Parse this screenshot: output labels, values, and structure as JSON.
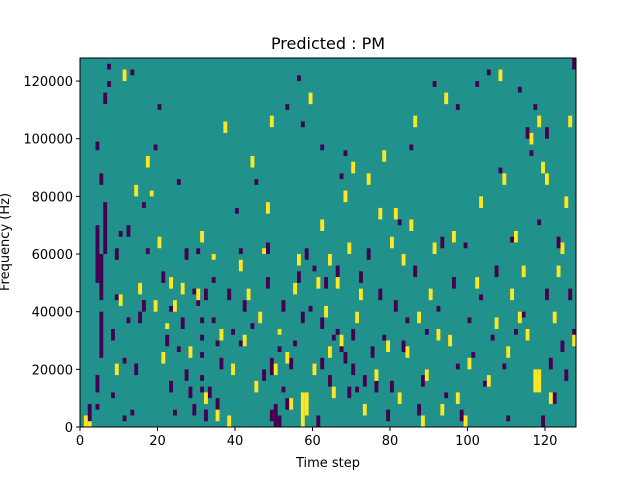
{
  "chart_data": {
    "type": "heatmap",
    "title": "Predicted : PM",
    "xlabel": "Time step",
    "ylabel": "Frequency (Hz)",
    "xlim": [
      0,
      128
    ],
    "ylim": [
      0,
      128000
    ],
    "x_ticks": [
      0,
      20,
      40,
      60,
      80,
      100,
      120
    ],
    "y_ticks": [
      0,
      20000,
      40000,
      60000,
      80000,
      100000,
      120000
    ],
    "x_tick_labels": [
      "0",
      "20",
      "40",
      "60",
      "80",
      "100",
      "120"
    ],
    "y_tick_labels": [
      "0",
      "20000",
      "40000",
      "60000",
      "80000",
      "100000",
      "120000"
    ],
    "grid": false,
    "legend": "none",
    "value_levels": [
      -1,
      0,
      1
    ],
    "colors": {
      "-1": "#440154",
      "0": "#21918c",
      "1": "#fde725"
    },
    "n_time": 128,
    "n_freq": 128,
    "background_value": 0,
    "cell_size_hz": 1000,
    "cell_size_step": 1,
    "cells_low": [
      [
        2,
        2,
        8
      ],
      [
        3,
        4,
        4
      ],
      [
        4,
        6,
        8
      ],
      [
        4,
        12,
        18
      ],
      [
        5,
        24,
        40
      ],
      [
        5,
        44,
        60
      ],
      [
        4,
        50,
        70
      ],
      [
        6,
        60,
        78
      ],
      [
        5,
        84,
        88
      ],
      [
        4,
        96,
        99
      ],
      [
        6,
        112,
        116
      ],
      [
        7,
        118,
        120
      ],
      [
        7,
        124,
        126
      ],
      [
        8,
        10,
        12
      ],
      [
        8,
        30,
        34
      ],
      [
        9,
        44,
        46
      ],
      [
        9,
        58,
        62
      ],
      [
        10,
        66,
        68
      ],
      [
        11,
        2,
        4
      ],
      [
        11,
        22,
        24
      ],
      [
        12,
        36,
        38
      ],
      [
        12,
        66,
        70
      ],
      [
        13,
        4,
        6
      ],
      [
        13,
        122,
        124
      ],
      [
        14,
        18,
        22
      ],
      [
        15,
        36,
        40
      ],
      [
        16,
        40,
        44
      ],
      [
        16,
        76,
        78
      ],
      [
        17,
        60,
        62
      ],
      [
        19,
        96,
        98
      ],
      [
        20,
        110,
        112
      ],
      [
        21,
        50,
        54
      ],
      [
        22,
        28,
        32
      ],
      [
        23,
        12,
        16
      ],
      [
        23,
        40,
        42
      ],
      [
        24,
        4,
        6
      ],
      [
        25,
        84,
        86
      ],
      [
        25,
        26,
        28
      ],
      [
        26,
        34,
        38
      ],
      [
        27,
        16,
        20
      ],
      [
        27,
        58,
        62
      ],
      [
        28,
        10,
        14
      ],
      [
        29,
        4,
        8
      ],
      [
        29,
        46,
        48
      ],
      [
        30,
        60,
        62
      ],
      [
        30,
        42,
        46
      ],
      [
        31,
        16,
        18
      ],
      [
        31,
        24,
        26
      ],
      [
        31,
        30,
        32
      ],
      [
        31,
        36,
        38
      ],
      [
        31,
        12,
        14
      ],
      [
        32,
        2,
        6
      ],
      [
        32,
        44,
        48
      ],
      [
        33,
        10,
        14
      ],
      [
        34,
        50,
        52
      ],
      [
        34,
        36,
        38
      ],
      [
        35,
        6,
        10
      ],
      [
        35,
        28,
        30
      ],
      [
        36,
        20,
        24
      ],
      [
        38,
        44,
        48
      ],
      [
        39,
        32,
        34
      ],
      [
        40,
        74,
        76
      ],
      [
        41,
        60,
        62
      ],
      [
        41,
        28,
        30
      ],
      [
        42,
        40,
        44
      ],
      [
        44,
        34,
        36
      ],
      [
        45,
        84,
        86
      ],
      [
        47,
        16,
        20
      ],
      [
        48,
        48,
        52
      ],
      [
        48,
        60,
        64
      ],
      [
        49,
        2,
        6
      ],
      [
        49,
        18,
        24
      ],
      [
        50,
        0,
        8
      ],
      [
        51,
        0,
        4
      ],
      [
        51,
        26,
        28
      ],
      [
        52,
        12,
        14
      ],
      [
        52,
        40,
        44
      ],
      [
        53,
        110,
        112
      ],
      [
        53,
        6,
        10
      ],
      [
        54,
        20,
        24
      ],
      [
        55,
        28,
        30
      ],
      [
        56,
        120,
        122
      ],
      [
        56,
        50,
        54
      ],
      [
        57,
        104,
        106
      ],
      [
        57,
        36,
        40
      ],
      [
        58,
        58,
        62
      ],
      [
        59,
        40,
        42
      ],
      [
        60,
        54,
        56
      ],
      [
        61,
        0,
        4
      ],
      [
        62,
        20,
        24
      ],
      [
        62,
        34,
        38
      ],
      [
        62,
        96,
        98
      ],
      [
        63,
        48,
        52
      ],
      [
        64,
        14,
        18
      ],
      [
        65,
        30,
        32
      ],
      [
        66,
        32,
        34
      ],
      [
        66,
        52,
        56
      ],
      [
        67,
        26,
        28
      ],
      [
        67,
        86,
        88
      ],
      [
        68,
        22,
        26
      ],
      [
        68,
        94,
        96
      ],
      [
        69,
        10,
        14
      ],
      [
        70,
        18,
        22
      ],
      [
        70,
        30,
        34
      ],
      [
        71,
        12,
        14
      ],
      [
        71,
        36,
        40
      ],
      [
        72,
        50,
        54
      ],
      [
        73,
        14,
        18
      ],
      [
        74,
        58,
        62
      ],
      [
        75,
        24,
        28
      ],
      [
        76,
        12,
        16
      ],
      [
        77,
        44,
        48
      ],
      [
        78,
        30,
        32
      ],
      [
        79,
        2,
        6
      ],
      [
        80,
        12,
        16
      ],
      [
        81,
        40,
        44
      ],
      [
        82,
        70,
        72
      ],
      [
        83,
        26,
        30
      ],
      [
        84,
        36,
        38
      ],
      [
        85,
        96,
        98
      ],
      [
        86,
        52,
        56
      ],
      [
        87,
        4,
        8
      ],
      [
        88,
        14,
        18
      ],
      [
        89,
        32,
        34
      ],
      [
        91,
        118,
        120
      ],
      [
        92,
        40,
        42
      ],
      [
        93,
        62,
        66
      ],
      [
        94,
        10,
        12
      ],
      [
        95,
        30,
        32
      ],
      [
        96,
        48,
        52
      ],
      [
        97,
        20,
        22
      ],
      [
        97,
        110,
        112
      ],
      [
        98,
        2,
        6
      ],
      [
        99,
        62,
        64
      ],
      [
        100,
        36,
        38
      ],
      [
        101,
        24,
        26
      ],
      [
        102,
        118,
        120
      ],
      [
        103,
        44,
        46
      ],
      [
        104,
        14,
        16
      ],
      [
        105,
        122,
        124
      ],
      [
        106,
        30,
        32
      ],
      [
        107,
        52,
        56
      ],
      [
        108,
        88,
        90
      ],
      [
        109,
        20,
        22
      ],
      [
        110,
        2,
        4
      ],
      [
        111,
        64,
        66
      ],
      [
        112,
        32,
        34
      ],
      [
        113,
        116,
        118
      ],
      [
        114,
        38,
        40
      ],
      [
        115,
        100,
        104
      ],
      [
        116,
        94,
        96
      ],
      [
        117,
        110,
        112
      ],
      [
        118,
        70,
        72
      ],
      [
        119,
        0,
        4
      ],
      [
        120,
        44,
        48
      ],
      [
        120,
        100,
        104
      ],
      [
        121,
        20,
        24
      ],
      [
        122,
        8,
        12
      ],
      [
        123,
        62,
        66
      ],
      [
        124,
        26,
        30
      ],
      [
        125,
        16,
        20
      ],
      [
        126,
        44,
        48
      ],
      [
        127,
        30,
        34
      ],
      [
        127,
        124,
        128
      ]
    ],
    "cells_high": [
      [
        1,
        0,
        4
      ],
      [
        2,
        0,
        2
      ],
      [
        9,
        18,
        22
      ],
      [
        10,
        42,
        46
      ],
      [
        11,
        120,
        124
      ],
      [
        14,
        80,
        84
      ],
      [
        15,
        46,
        50
      ],
      [
        17,
        90,
        94
      ],
      [
        18,
        80,
        82
      ],
      [
        19,
        40,
        44
      ],
      [
        20,
        62,
        66
      ],
      [
        21,
        22,
        26
      ],
      [
        22,
        34,
        36
      ],
      [
        23,
        48,
        52
      ],
      [
        24,
        40,
        44
      ],
      [
        26,
        46,
        50
      ],
      [
        28,
        24,
        28
      ],
      [
        30,
        44,
        48
      ],
      [
        31,
        64,
        68
      ],
      [
        32,
        8,
        12
      ],
      [
        34,
        58,
        60
      ],
      [
        35,
        2,
        6
      ],
      [
        36,
        30,
        34
      ],
      [
        37,
        102,
        106
      ],
      [
        38,
        0,
        4
      ],
      [
        39,
        18,
        22
      ],
      [
        41,
        54,
        58
      ],
      [
        42,
        28,
        32
      ],
      [
        43,
        44,
        48
      ],
      [
        44,
        90,
        94
      ],
      [
        45,
        12,
        16
      ],
      [
        46,
        36,
        40
      ],
      [
        47,
        60,
        62
      ],
      [
        48,
        74,
        78
      ],
      [
        49,
        104,
        108
      ],
      [
        50,
        18,
        22
      ],
      [
        51,
        32,
        34
      ],
      [
        53,
        22,
        26
      ],
      [
        54,
        6,
        10
      ],
      [
        55,
        46,
        50
      ],
      [
        56,
        56,
        60
      ],
      [
        57,
        0,
        12
      ],
      [
        58,
        4,
        12
      ],
      [
        59,
        112,
        116
      ],
      [
        60,
        18,
        22
      ],
      [
        61,
        48,
        52
      ],
      [
        62,
        68,
        72
      ],
      [
        63,
        38,
        42
      ],
      [
        64,
        24,
        28
      ],
      [
        64,
        56,
        60
      ],
      [
        65,
        10,
        14
      ],
      [
        66,
        48,
        52
      ],
      [
        67,
        28,
        32
      ],
      [
        68,
        78,
        82
      ],
      [
        69,
        60,
        64
      ],
      [
        70,
        88,
        92
      ],
      [
        71,
        36,
        40
      ],
      [
        72,
        44,
        48
      ],
      [
        73,
        4,
        8
      ],
      [
        74,
        84,
        88
      ],
      [
        76,
        16,
        20
      ],
      [
        77,
        72,
        76
      ],
      [
        78,
        92,
        96
      ],
      [
        79,
        26,
        30
      ],
      [
        80,
        62,
        66
      ],
      [
        81,
        72,
        76
      ],
      [
        82,
        8,
        12
      ],
      [
        83,
        56,
        60
      ],
      [
        84,
        24,
        28
      ],
      [
        85,
        68,
        72
      ],
      [
        86,
        104,
        108
      ],
      [
        87,
        36,
        40
      ],
      [
        88,
        0,
        4
      ],
      [
        89,
        16,
        20
      ],
      [
        90,
        44,
        48
      ],
      [
        91,
        60,
        64
      ],
      [
        92,
        30,
        34
      ],
      [
        93,
        4,
        8
      ],
      [
        94,
        112,
        116
      ],
      [
        95,
        28,
        32
      ],
      [
        96,
        64,
        68
      ],
      [
        97,
        8,
        12
      ],
      [
        99,
        0,
        4
      ],
      [
        100,
        20,
        24
      ],
      [
        102,
        48,
        52
      ],
      [
        103,
        76,
        80
      ],
      [
        105,
        14,
        18
      ],
      [
        107,
        34,
        38
      ],
      [
        108,
        120,
        124
      ],
      [
        109,
        84,
        88
      ],
      [
        110,
        24,
        28
      ],
      [
        111,
        44,
        48
      ],
      [
        112,
        64,
        68
      ],
      [
        113,
        36,
        40
      ],
      [
        114,
        52,
        56
      ],
      [
        115,
        30,
        34
      ],
      [
        116,
        98,
        102
      ],
      [
        117,
        12,
        20
      ],
      [
        118,
        12,
        20
      ],
      [
        118,
        104,
        108
      ],
      [
        119,
        88,
        92
      ],
      [
        120,
        84,
        88
      ],
      [
        121,
        8,
        12
      ],
      [
        122,
        36,
        40
      ],
      [
        123,
        52,
        56
      ],
      [
        124,
        60,
        64
      ],
      [
        125,
        76,
        80
      ],
      [
        126,
        104,
        108
      ],
      [
        127,
        28,
        32
      ]
    ]
  }
}
